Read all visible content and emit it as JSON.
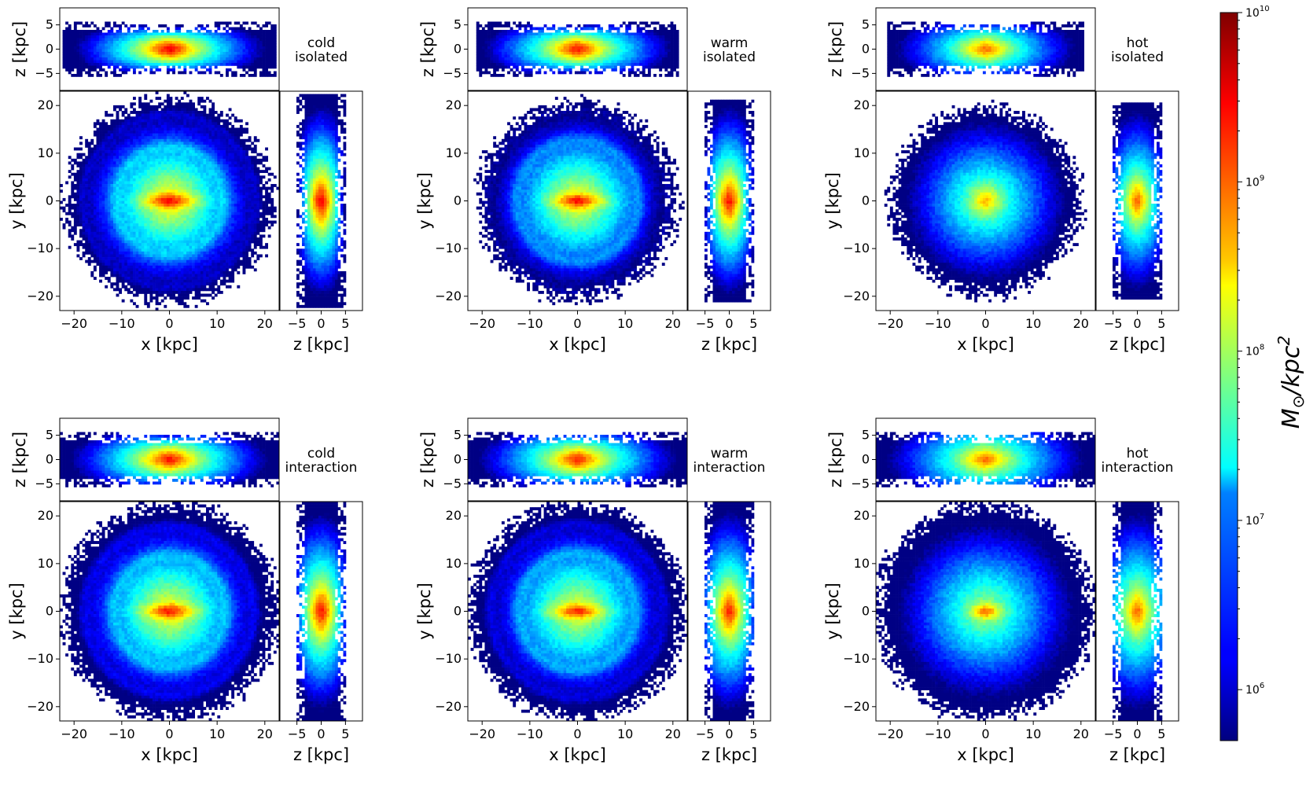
{
  "chart_data": {
    "type": "heatmap",
    "figure": "Projected stellar surface density maps (x-y face-on, x-z and z-y edge-on) of six galaxy disks",
    "colorbar": {
      "label_main": "M",
      "label_sub": "⊙",
      "label_rest": "/kpc",
      "label_sup": "2",
      "scale": "log",
      "range": [
        500000,
        10000000000
      ],
      "ticks": [
        {
          "value": 1000000,
          "base": "10",
          "exp": "6"
        },
        {
          "value": 10000000,
          "base": "10",
          "exp": "7"
        },
        {
          "value": 100000000,
          "base": "10",
          "exp": "8"
        },
        {
          "value": 1000000000,
          "base": "10",
          "exp": "9"
        },
        {
          "value": 10000000000,
          "base": "10",
          "exp": "10"
        }
      ],
      "colormap": "jet"
    },
    "axes": {
      "xy": {
        "xlabel": "x [kpc]",
        "ylabel": "y [kpc]",
        "xlim": [
          -23,
          23
        ],
        "ylim": [
          -23,
          23
        ],
        "xticks": [
          "−20",
          "−10",
          "0",
          "10",
          "20"
        ],
        "xtick_values": [
          -20,
          -10,
          0,
          10,
          20
        ],
        "yticks": [
          "−20",
          "−10",
          "0",
          "10",
          "20"
        ],
        "ytick_values": [
          -20,
          -10,
          0,
          10,
          20
        ]
      },
      "xz": {
        "ylabel": "z [kpc]",
        "zlim": [
          -8.5,
          8.5
        ],
        "zticks": [
          "5",
          "0",
          "−5"
        ],
        "ztick_values": [
          5,
          0,
          -5
        ]
      },
      "zy": {
        "xlabel": "z [kpc]",
        "zlim": [
          -8.5,
          8.5
        ],
        "zticks": [
          "−5",
          "0",
          "5"
        ],
        "ztick_values": [
          -5,
          0,
          5
        ]
      }
    },
    "panels": [
      {
        "label_line1": "cold",
        "label_line2": "isolated",
        "peak_log10": 9.5,
        "scale_length_kpc": 4.5,
        "scale_height_kpc": 1.2,
        "bar_length_kpc": 6,
        "rings": [
          11.5,
          18.5
        ],
        "edge_kpc": 22
      },
      {
        "label_line1": "warm",
        "label_line2": "isolated",
        "peak_log10": 9.4,
        "scale_length_kpc": 4.6,
        "scale_height_kpc": 1.3,
        "bar_length_kpc": 6,
        "rings": [
          13,
          19.5
        ],
        "edge_kpc": 21
      },
      {
        "label_line1": "hot",
        "label_line2": "isolated",
        "peak_log10": 9.0,
        "scale_length_kpc": 5.0,
        "scale_height_kpc": 1.6,
        "bar_length_kpc": 0,
        "rings": [],
        "edge_kpc": 20
      },
      {
        "label_line1": "cold",
        "label_line2": "interaction",
        "peak_log10": 9.4,
        "scale_length_kpc": 4.8,
        "scale_height_kpc": 1.4,
        "bar_length_kpc": 6,
        "rings": [
          12,
          18
        ],
        "edge_kpc": 23
      },
      {
        "label_line1": "warm",
        "label_line2": "interaction",
        "peak_log10": 9.3,
        "scale_length_kpc": 5.0,
        "scale_height_kpc": 1.5,
        "bar_length_kpc": 6,
        "rings": [
          12.5,
          18.5
        ],
        "edge_kpc": 23
      },
      {
        "label_line1": "hot",
        "label_line2": "interaction",
        "peak_log10": 9.0,
        "scale_length_kpc": 5.5,
        "scale_height_kpc": 1.9,
        "bar_length_kpc": 3,
        "rings": [],
        "edge_kpc": 23
      }
    ]
  }
}
